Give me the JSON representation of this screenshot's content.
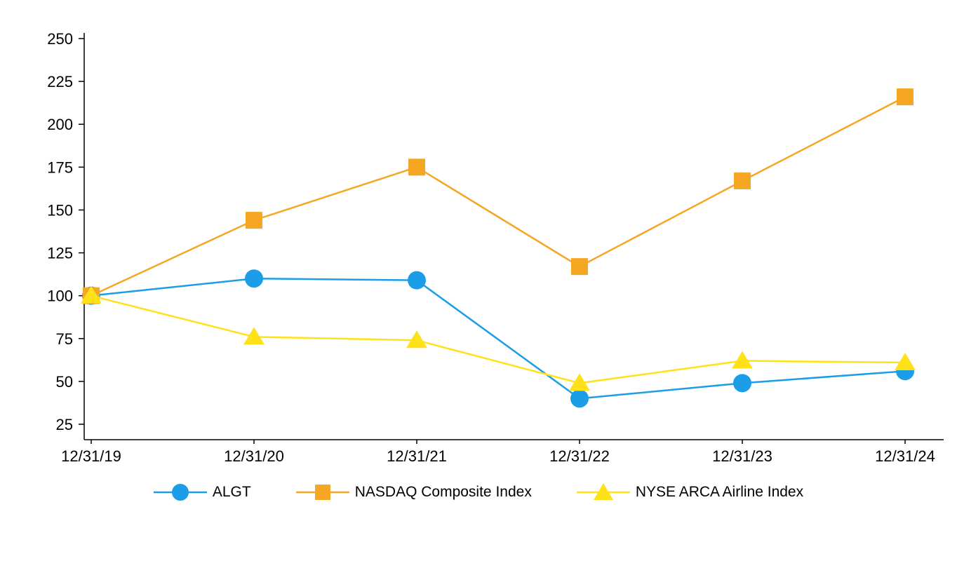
{
  "chart_data": {
    "type": "line",
    "title": "",
    "xlabel": "",
    "ylabel": "",
    "x_labels": [
      "12/31/19",
      "12/31/20",
      "12/31/21",
      "12/31/22",
      "12/31/23",
      "12/31/24"
    ],
    "y_ticks": [
      25,
      50,
      75,
      100,
      125,
      150,
      175,
      200,
      225,
      250
    ],
    "ylim": [
      25,
      250
    ],
    "grid": "off",
    "legend_position": "bottom",
    "axis_color": "#000000",
    "series": [
      {
        "name": "ALGT",
        "marker": "circle",
        "color": "#1B9DE8",
        "values": [
          100,
          110,
          109,
          40,
          49,
          56
        ]
      },
      {
        "name": "NASDAQ Composite Index",
        "marker": "square",
        "color": "#F5A623",
        "values": [
          100,
          144,
          175,
          117,
          167,
          216
        ]
      },
      {
        "name": "NYSE ARCA Airline Index",
        "marker": "triangle",
        "color": "#FFE11A",
        "values": [
          100,
          76,
          74,
          49,
          62,
          61
        ]
      }
    ]
  }
}
